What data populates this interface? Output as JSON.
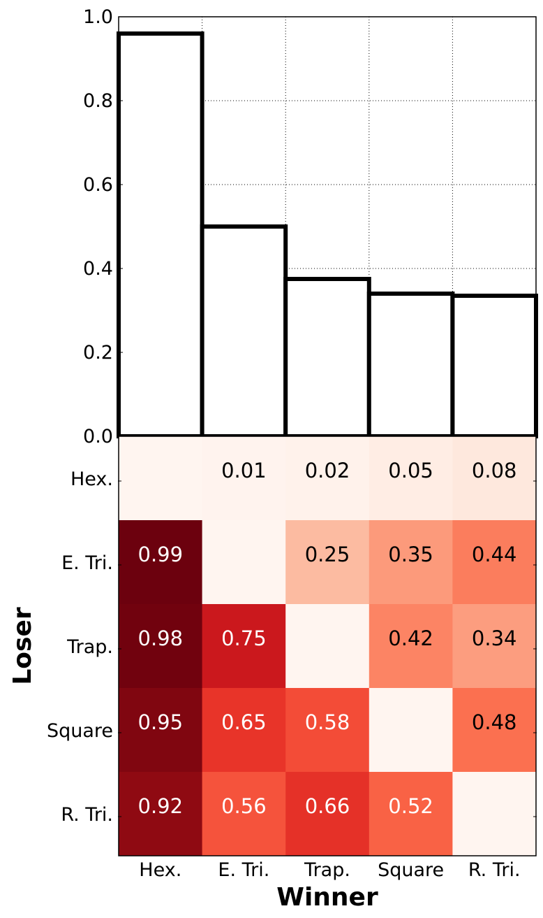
{
  "chart_data": [
    {
      "type": "bar",
      "categories": [
        "Hex.",
        "E. Tri.",
        "Trap.",
        "Square",
        "R. Tri."
      ],
      "values": [
        0.96,
        0.5,
        0.375,
        0.34,
        0.335
      ],
      "ylim": [
        0,
        1.0
      ],
      "yticks": [
        "0.0",
        "0.2",
        "0.4",
        "0.6",
        "0.8",
        "1.0"
      ],
      "grid": true,
      "xlabel": "",
      "ylabel": ""
    },
    {
      "type": "heatmap",
      "x_categories": [
        "Hex.",
        "E. Tri.",
        "Trap.",
        "Square",
        "R. Tri."
      ],
      "y_categories": [
        "Hex.",
        "E. Tri.",
        "Trap.",
        "Square",
        "R. Tri."
      ],
      "xlabel": "Winner",
      "ylabel": "Loser",
      "colormap": "Reds",
      "values": [
        [
          null,
          0.01,
          0.02,
          0.05,
          0.08
        ],
        [
          0.99,
          null,
          0.25,
          0.35,
          0.44
        ],
        [
          0.98,
          0.75,
          null,
          0.42,
          0.34
        ],
        [
          0.95,
          0.65,
          0.58,
          null,
          0.48
        ],
        [
          0.92,
          0.56,
          0.66,
          0.52,
          null
        ]
      ],
      "labels": [
        [
          "",
          "0.01",
          "0.02",
          "0.05",
          "0.08"
        ],
        [
          "0.99",
          "",
          "0.25",
          "0.35",
          "0.44"
        ],
        [
          "0.98",
          "0.75",
          "",
          "0.42",
          "0.34"
        ],
        [
          "0.95",
          "0.65",
          "0.58",
          "",
          "0.48"
        ],
        [
          "0.92",
          "0.56",
          "0.66",
          "0.52",
          ""
        ]
      ]
    }
  ]
}
